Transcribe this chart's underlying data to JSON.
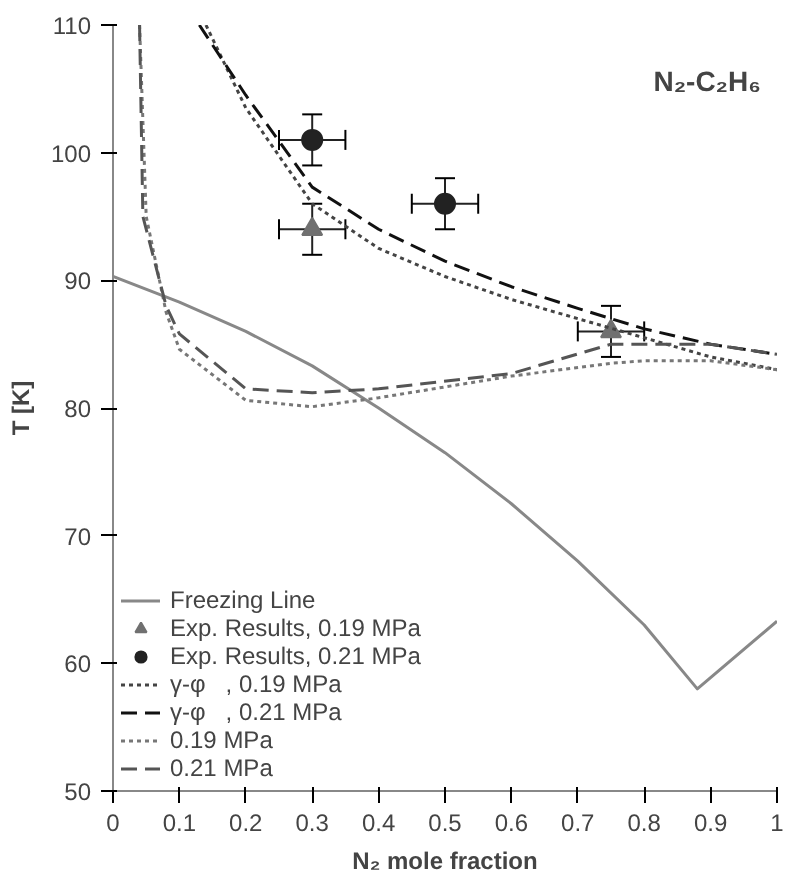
{
  "chart_data": {
    "type": "line",
    "title": "N₂-C₂H₆",
    "xlabel": "N₂ mole fraction",
    "ylabel": "T [K]",
    "xlim": [
      0,
      1
    ],
    "xticks": [
      0,
      0.1,
      0.2,
      0.3,
      0.4,
      0.5,
      0.6,
      0.7,
      0.8,
      0.9,
      1
    ],
    "ylim": [
      50,
      110
    ],
    "yticks": [
      50,
      60,
      70,
      80,
      90,
      100,
      110
    ],
    "grid": false,
    "legend": "bottom left",
    "series": [
      {
        "name": "Freezing Line",
        "line_style": "solid",
        "color": "#888888",
        "x": [
          0,
          0.1,
          0.2,
          0.3,
          0.4,
          0.5,
          0.6,
          0.7,
          0.8,
          0.88,
          1
        ],
        "values": [
          90.3,
          88.3,
          86,
          83.3,
          80,
          76.5,
          72.5,
          68,
          63,
          58,
          63.3
        ]
      },
      {
        "name": "Exp. Results, 0.19 MPa",
        "type": "scatter",
        "marker": "triangle",
        "color": "#707070",
        "x": [
          0.3,
          0.75
        ],
        "values": [
          94,
          86
        ],
        "errors": [
          2,
          2
        ],
        "xerrors": [
          0.05,
          0.05
        ]
      },
      {
        "name": "Exp. Results, 0.21 MPa",
        "type": "scatter",
        "marker": "circle",
        "color": "#222222",
        "x": [
          0.3,
          0.5
        ],
        "values": [
          101,
          96
        ],
        "errors": [
          2,
          2
        ],
        "xerrors": [
          0.05,
          0.05
        ]
      },
      {
        "name": "γ-φ   , 0.19 MPa",
        "line_style": "dotted",
        "color": "#444444",
        "x": [
          0.14,
          0.2,
          0.3,
          0.4,
          0.5,
          0.6,
          0.7,
          0.8,
          0.9,
          1
        ],
        "values": [
          110,
          103.5,
          96,
          92.5,
          90.3,
          88.5,
          87,
          85.5,
          84,
          83
        ]
      },
      {
        "name": "γ-φ   , 0.21 MPa",
        "line_style": "dashed",
        "color": "#111111",
        "x": [
          0.13,
          0.2,
          0.3,
          0.4,
          0.5,
          0.6,
          0.7,
          0.8,
          0.9,
          1
        ],
        "values": [
          110,
          104.5,
          97.3,
          94,
          91.5,
          89.5,
          87.8,
          86.2,
          85,
          84.2
        ]
      },
      {
        "name": "0.19 MPa",
        "line_style": "dotted",
        "color": "#777777",
        "x": [
          0.04,
          0.05,
          0.08,
          0.1,
          0.2,
          0.3,
          0.4,
          0.6,
          0.75,
          0.8,
          0.9,
          1
        ],
        "values": [
          110,
          95,
          87.5,
          84.6,
          80.6,
          80.1,
          80.8,
          82.5,
          83.5,
          83.7,
          83.7,
          83
        ]
      },
      {
        "name": "0.21 MPa",
        "line_style": "dashed",
        "color": "#555555",
        "x": [
          0.04,
          0.045,
          0.08,
          0.1,
          0.2,
          0.3,
          0.4,
          0.6,
          0.75,
          0.8,
          0.9,
          1
        ],
        "values": [
          110,
          95,
          88,
          85.8,
          81.5,
          81.2,
          81.5,
          82.7,
          85,
          85,
          85,
          84.2
        ]
      }
    ]
  }
}
